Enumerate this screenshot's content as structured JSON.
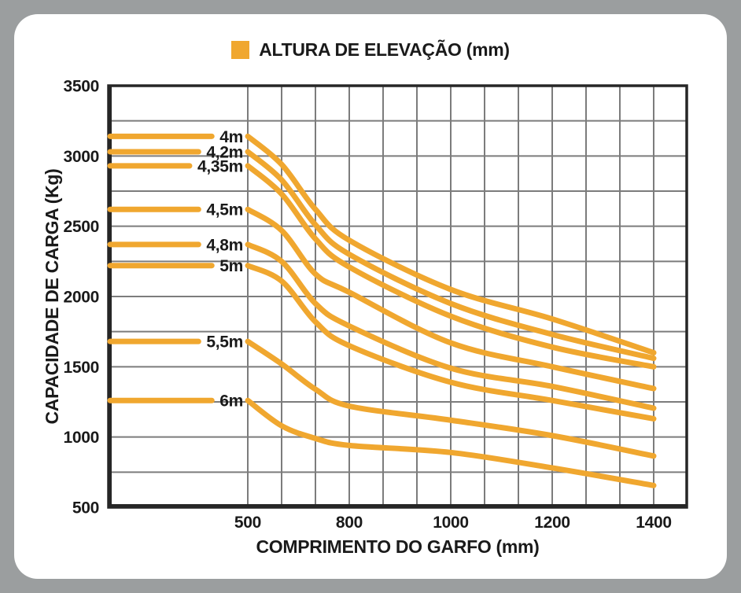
{
  "colors": {
    "background": "#9b9e9f",
    "card": "#ffffff",
    "grid": "#7c7c7c",
    "axis": "#262626",
    "accent": "#f0a72f",
    "text": "#1a1a1a"
  },
  "legend": {
    "label": "ALTURA DE ELEVAÇÃO (mm)"
  },
  "chart_data": {
    "type": "line",
    "title": "",
    "xlabel": "COMPRIMENTO DO GARFO (mm)",
    "ylabel": "CAPACIDADE DE CARGA (Kg)",
    "legend_title": "ALTURA DE ELEVAÇÃO (mm)",
    "legend_position": "top-center",
    "grid": "on",
    "x_axis": {
      "unit": "mm",
      "tick_labels": [
        "500",
        "800",
        "1000",
        "1200",
        "1400"
      ],
      "tick_grid_index": [
        0,
        3,
        6,
        9,
        12
      ],
      "grid_line_count": 13,
      "layout_note": "non-linear axis: 13 equally spaced gridlines, wide empty band between y-axis and the 500 mm gridline"
    },
    "y_axis": {
      "unit": "Kg",
      "min": 500,
      "max": 3500,
      "grid_step": 250,
      "label_step": 500,
      "tick_labels": [
        "3500",
        "3000",
        "2500",
        "2000",
        "1500",
        "1000",
        "500"
      ]
    },
    "x_values_mm": [
      500,
      600,
      700,
      800,
      1000,
      1200,
      1400
    ],
    "x_values_grid_index": [
      0,
      1,
      2,
      3,
      6,
      9,
      12
    ],
    "series": [
      {
        "name": "4m",
        "values": [
          3140,
          2940,
          2620,
          2400,
          2050,
          1840,
          1600
        ]
      },
      {
        "name": "4,2m",
        "values": [
          3030,
          2830,
          2510,
          2300,
          1950,
          1730,
          1560
        ]
      },
      {
        "name": "4,35m",
        "values": [
          2930,
          2730,
          2410,
          2210,
          1860,
          1640,
          1500
        ]
      },
      {
        "name": "4,5m",
        "values": [
          2620,
          2470,
          2160,
          2030,
          1670,
          1500,
          1345
        ]
      },
      {
        "name": "4,8m",
        "values": [
          2370,
          2250,
          1950,
          1790,
          1490,
          1360,
          1205
        ]
      },
      {
        "name": "5m",
        "values": [
          2220,
          2110,
          1820,
          1650,
          1390,
          1260,
          1130
        ]
      },
      {
        "name": "5,5m",
        "values": [
          1680,
          1520,
          1340,
          1220,
          1120,
          1010,
          865
        ]
      },
      {
        "name": "6m",
        "values": [
          1260,
          1080,
          990,
          940,
          890,
          780,
          655
        ]
      }
    ]
  }
}
